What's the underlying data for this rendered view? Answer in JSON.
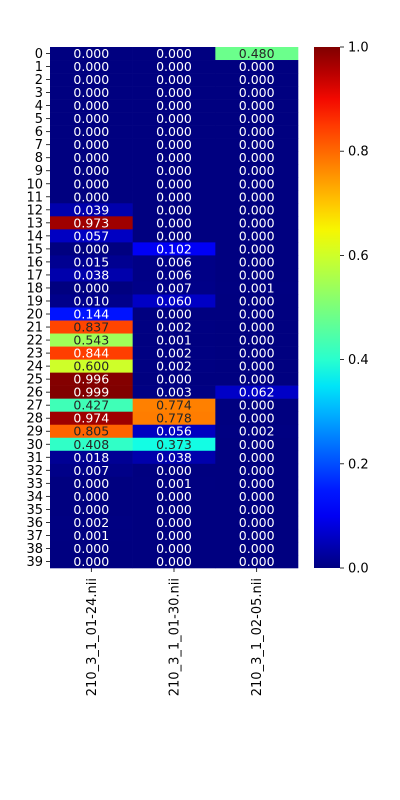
{
  "chart_data": {
    "type": "heatmap",
    "title": "",
    "xlabel": "",
    "ylabel": "",
    "colormap": "jet",
    "vmin": 0,
    "vmax": 1,
    "columns": [
      "210_3_1_01-24.nii",
      "210_3_1_01-30.nii",
      "210_3_1_02-05.nii"
    ],
    "rows": [
      "0",
      "1",
      "2",
      "3",
      "4",
      "5",
      "6",
      "7",
      "8",
      "9",
      "10",
      "11",
      "12",
      "13",
      "14",
      "15",
      "16",
      "17",
      "18",
      "19",
      "20",
      "21",
      "22",
      "23",
      "24",
      "25",
      "26",
      "27",
      "28",
      "29",
      "30",
      "31",
      "32",
      "33",
      "34",
      "35",
      "36",
      "37",
      "38",
      "39"
    ],
    "values": [
      [
        0.0,
        0.0,
        0.48
      ],
      [
        0.0,
        0.0,
        0.0
      ],
      [
        0.0,
        0.0,
        0.0
      ],
      [
        0.0,
        0.0,
        0.0
      ],
      [
        0.0,
        0.0,
        0.0
      ],
      [
        0.0,
        0.0,
        0.0
      ],
      [
        0.0,
        0.0,
        0.0
      ],
      [
        0.0,
        0.0,
        0.0
      ],
      [
        0.0,
        0.0,
        0.0
      ],
      [
        0.0,
        0.0,
        0.0
      ],
      [
        0.0,
        0.0,
        0.0
      ],
      [
        0.0,
        0.0,
        0.0
      ],
      [
        0.039,
        0.0,
        0.0
      ],
      [
        0.973,
        0.0,
        0.0
      ],
      [
        0.057,
        0.0,
        0.0
      ],
      [
        0.0,
        0.102,
        0.0
      ],
      [
        0.015,
        0.006,
        0.0
      ],
      [
        0.038,
        0.006,
        0.0
      ],
      [
        0.0,
        0.007,
        0.001
      ],
      [
        0.01,
        0.06,
        0.0
      ],
      [
        0.144,
        0.0,
        0.0
      ],
      [
        0.837,
        0.002,
        0.0
      ],
      [
        0.543,
        0.001,
        0.0
      ],
      [
        0.844,
        0.002,
        0.0
      ],
      [
        0.6,
        0.002,
        0.0
      ],
      [
        0.996,
        0.0,
        0.0
      ],
      [
        0.999,
        0.003,
        0.062
      ],
      [
        0.427,
        0.774,
        0.0
      ],
      [
        0.974,
        0.778,
        0.0
      ],
      [
        0.805,
        0.056,
        0.002
      ],
      [
        0.408,
        0.373,
        0.0
      ],
      [
        0.018,
        0.038,
        0.0
      ],
      [
        0.007,
        0.0,
        0.0
      ],
      [
        0.0,
        0.001,
        0.0
      ],
      [
        0.0,
        0.0,
        0.0
      ],
      [
        0.0,
        0.0,
        0.0
      ],
      [
        0.002,
        0.0,
        0.0
      ],
      [
        0.001,
        0.0,
        0.0
      ],
      [
        0.0,
        0.0,
        0.0
      ],
      [
        0.0,
        0.0,
        0.0
      ]
    ],
    "colorbar_ticks": [
      "0.0",
      "0.2",
      "0.4",
      "0.6",
      "0.8",
      "1.0"
    ]
  }
}
